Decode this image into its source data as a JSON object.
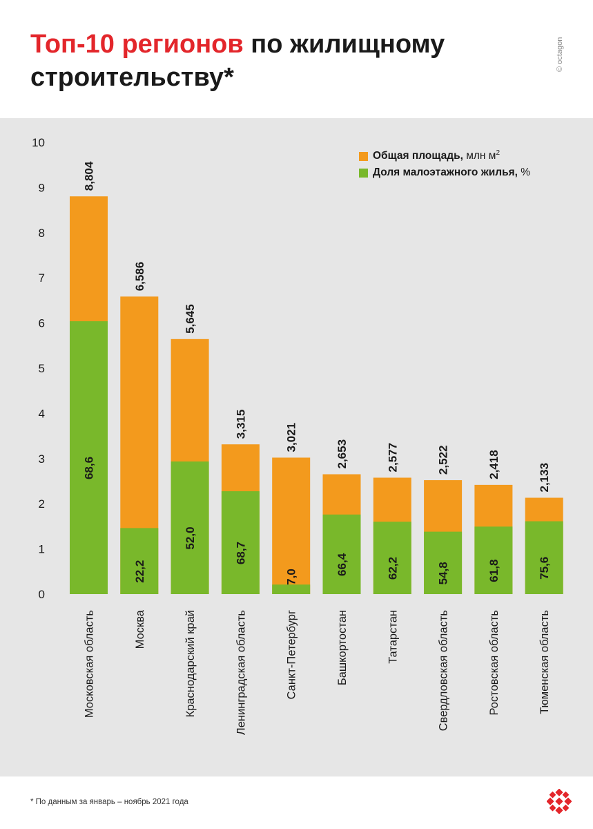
{
  "header": {
    "title_accent": "Топ-10 регионов",
    "title_line1_rest": " по жилищному",
    "title_line2": "строительству*",
    "copyright": "© octagon"
  },
  "legend": {
    "area_label_bold": "Общая площадь,",
    "area_label_rest": " млн м",
    "area_label_sup": "2",
    "share_label_bold": "Доля малоэтажного жилья,",
    "share_label_rest": " %"
  },
  "chart_data": {
    "type": "bar",
    "title": "Топ-10 регионов по жилищному строительству*",
    "categories": [
      "Московская область",
      "Москва",
      "Краснодарский край",
      "Ленинградская область",
      "Санкт-Петербург",
      "Башкортостан",
      "Татарстан",
      "Свердловская область",
      "Ростовская область",
      "Тюменская область"
    ],
    "series": [
      {
        "name": "Общая площадь, млн м2",
        "values": [
          8.804,
          6.586,
          5.645,
          3.315,
          3.021,
          2.653,
          2.577,
          2.522,
          2.418,
          2.133
        ],
        "labels": [
          "8,804",
          "6,586",
          "5,645",
          "3,315",
          "3,021",
          "2,653",
          "2,577",
          "2,522",
          "2,418",
          "2,133"
        ]
      },
      {
        "name": "Доля малоэтажного жилья, %",
        "values": [
          68.6,
          22.2,
          52.0,
          68.7,
          7.0,
          66.4,
          62.2,
          54.8,
          61.8,
          75.6
        ],
        "labels": [
          "68,6",
          "22,2",
          "52,0",
          "68,7",
          "7,0",
          "66,4",
          "62,2",
          "54,8",
          "61,8",
          "75,6"
        ]
      }
    ],
    "y_ticks": [
      "0",
      "1",
      "2",
      "3",
      "4",
      "5",
      "6",
      "7",
      "8",
      "9",
      "10"
    ],
    "ylim": [
      0,
      10
    ],
    "colors": {
      "total": "#f39a1d",
      "low_rise": "#79b82b",
      "text": "#1a1a1a"
    }
  },
  "footnote": "* По данным за январь – ноябрь 2021 года",
  "logo_icon": "octagon-logo-icon"
}
